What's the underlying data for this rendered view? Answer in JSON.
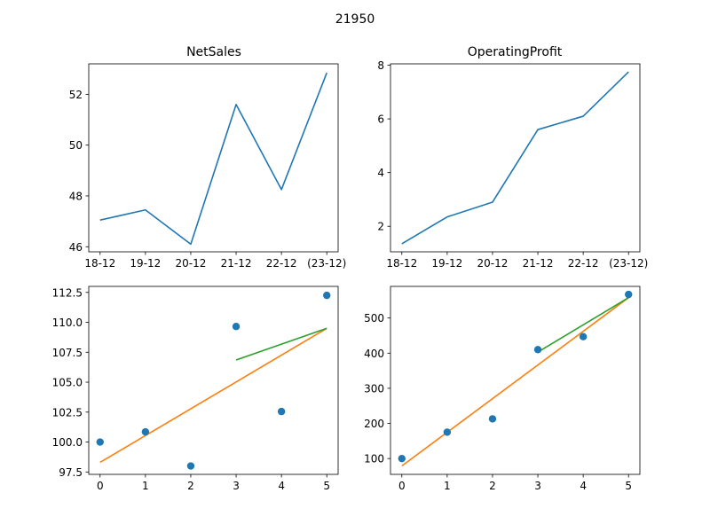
{
  "figure": {
    "suptitle": "21950"
  },
  "colors": {
    "blue": "#1f77b4",
    "orange": "#ff7f0e",
    "green": "#2ca02c"
  },
  "chart_data": [
    {
      "type": "line",
      "title": "NetSales",
      "categories": [
        "18-12",
        "19-12",
        "20-12",
        "21-12",
        "22-12",
        "(23-12)"
      ],
      "values": [
        47.05,
        47.45,
        46.1,
        51.6,
        48.25,
        52.85
      ],
      "ylim": [
        45.8,
        53.2
      ],
      "yticks": [
        46,
        48,
        50,
        52
      ],
      "ytick_labels": [
        "46",
        "48",
        "50",
        "52"
      ],
      "grid": false
    },
    {
      "type": "line",
      "title": "OperatingProfit",
      "categories": [
        "18-12",
        "19-12",
        "20-12",
        "21-12",
        "22-12",
        "(23-12)"
      ],
      "values": [
        1.35,
        2.35,
        2.9,
        5.6,
        6.1,
        7.75
      ],
      "ylim": [
        1.05,
        8.05
      ],
      "yticks": [
        2,
        4,
        6,
        8
      ],
      "ytick_labels": [
        "2",
        "4",
        "6",
        "8"
      ],
      "grid": false
    },
    {
      "type": "scatter",
      "title": "",
      "x": [
        0,
        1,
        2,
        3,
        4,
        5
      ],
      "y": [
        100.0,
        100.85,
        98.0,
        109.65,
        102.55,
        112.25
      ],
      "fit_all": {
        "x": [
          0,
          5
        ],
        "y": [
          98.3,
          109.5
        ]
      },
      "fit_recent": {
        "x": [
          3,
          5
        ],
        "y": [
          106.85,
          109.5
        ]
      },
      "xlim": [
        -0.25,
        5.25
      ],
      "ylim": [
        97.3,
        113.0
      ],
      "xticks": [
        0,
        1,
        2,
        3,
        4,
        5
      ],
      "xtick_labels": [
        "0",
        "1",
        "2",
        "3",
        "4",
        "5"
      ],
      "yticks": [
        97.5,
        100.0,
        102.5,
        105.0,
        107.5,
        110.0,
        112.5
      ],
      "ytick_labels": [
        "97.5",
        "100.0",
        "102.5",
        "105.0",
        "107.5",
        "110.0",
        "112.5"
      ],
      "grid": false
    },
    {
      "type": "scatter",
      "title": "",
      "x": [
        0,
        1,
        2,
        3,
        4,
        5
      ],
      "y": [
        100,
        175,
        213,
        410,
        447,
        567
      ],
      "fit_all": {
        "x": [
          0,
          5
        ],
        "y": [
          79,
          558
        ]
      },
      "fit_recent": {
        "x": [
          3,
          5
        ],
        "y": [
          403,
          558
        ]
      },
      "xlim": [
        -0.25,
        5.25
      ],
      "ylim": [
        55,
        590
      ],
      "xticks": [
        0,
        1,
        2,
        3,
        4,
        5
      ],
      "xtick_labels": [
        "0",
        "1",
        "2",
        "3",
        "4",
        "5"
      ],
      "yticks": [
        100,
        200,
        300,
        400,
        500
      ],
      "ytick_labels": [
        "100",
        "200",
        "300",
        "400",
        "500"
      ],
      "grid": false
    }
  ]
}
